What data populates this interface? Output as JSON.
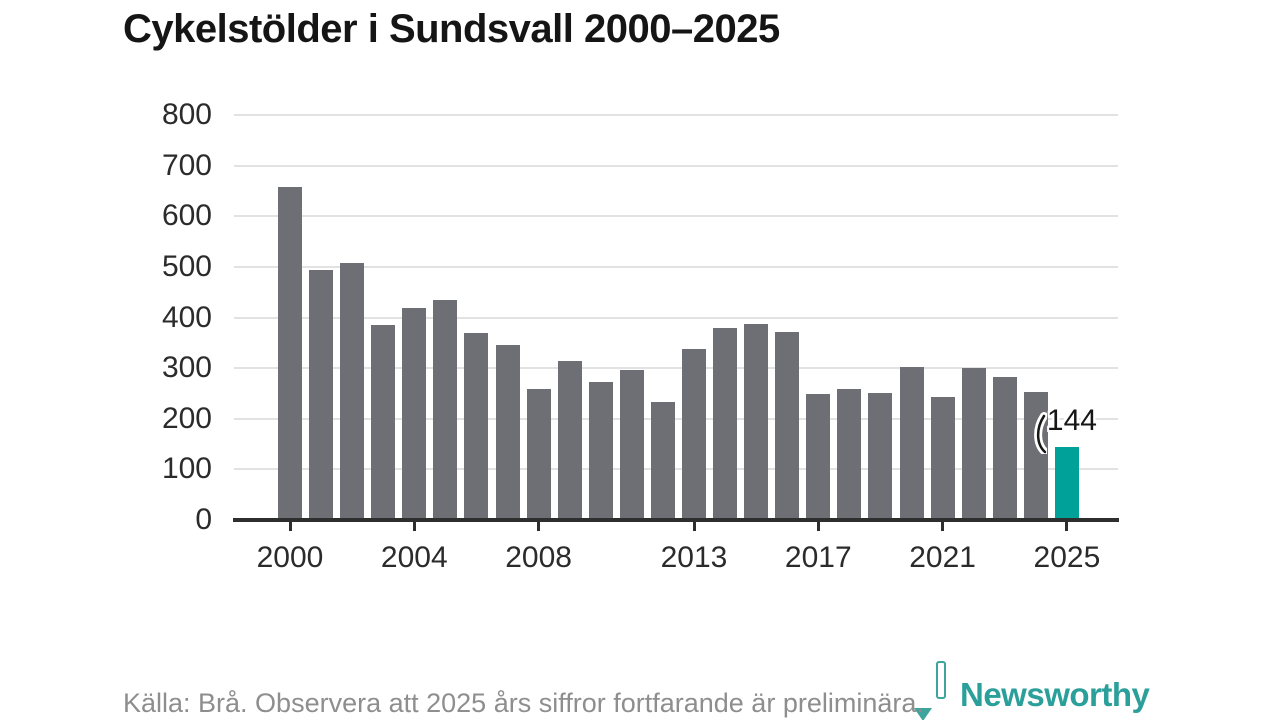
{
  "page": {
    "title": "Cykelstölder i Sundsvall 2000–2025"
  },
  "chart_data": {
    "type": "bar",
    "title": "Cykelstölder i Sundsvall 2000–2025",
    "categories": [
      2000,
      2001,
      2002,
      2003,
      2004,
      2005,
      2006,
      2007,
      2008,
      2009,
      2010,
      2011,
      2012,
      2013,
      2014,
      2015,
      2016,
      2017,
      2018,
      2019,
      2020,
      2021,
      2022,
      2023,
      2024,
      2025
    ],
    "values": [
      658,
      494,
      507,
      385,
      419,
      434,
      369,
      346,
      259,
      315,
      273,
      296,
      234,
      338,
      380,
      387,
      371,
      248,
      259,
      251,
      303,
      242,
      301,
      283,
      252,
      144
    ],
    "xlabel": "",
    "ylabel": "",
    "ylim": [
      0,
      800
    ],
    "yticks": [
      0,
      100,
      200,
      300,
      400,
      500,
      600,
      700,
      800
    ],
    "xticks": [
      2000,
      2004,
      2008,
      2013,
      2017,
      2021,
      2025
    ],
    "grid": "horizontal",
    "legend": "none",
    "bar_color": "#6e6f75",
    "highlight": {
      "category": 2025,
      "value": 144,
      "color": "#00a198",
      "label": "144"
    }
  },
  "footer": {
    "source_note": "Källa: Brå. Observera att 2025 års siffror fortfarande är preliminära."
  },
  "logo": {
    "text": "Newsworthy",
    "color": "#2b9f99",
    "icon": "newsworthy-bubble-barchart-icon"
  }
}
